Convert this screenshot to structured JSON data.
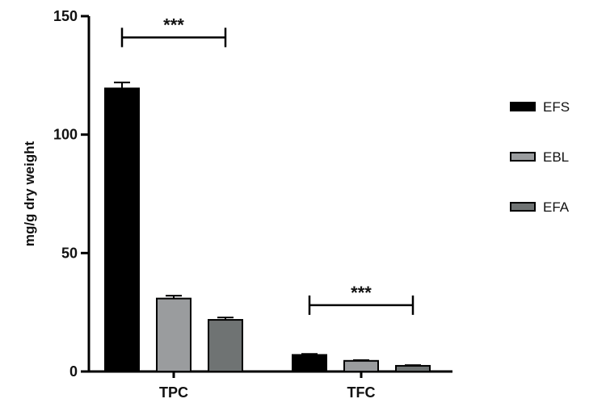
{
  "chart_data": {
    "type": "bar",
    "categories": [
      "TPC",
      "TFC"
    ],
    "ylabel": "mg/g dry weight",
    "ylim": [
      0,
      150
    ],
    "yticks": [
      0,
      50,
      100,
      150
    ],
    "grid": false,
    "legend_position": "right",
    "series": [
      {
        "name": "EFS",
        "values": [
          119.5,
          7.0
        ],
        "errors": [
          2.5,
          0.4
        ],
        "color": "#000000"
      },
      {
        "name": "EBL",
        "values": [
          30.8,
          4.5
        ],
        "errors": [
          1.2,
          0.3
        ],
        "color": "#9a9c9e"
      },
      {
        "name": "EFA",
        "values": [
          21.8,
          2.4
        ],
        "errors": [
          1.0,
          0.3
        ],
        "color": "#6f7373"
      }
    ],
    "annotations": [
      {
        "text": "***",
        "category": "TPC",
        "from_series": "EFS",
        "to_series": "EFA",
        "y": 141
      },
      {
        "text": "***",
        "category": "TFC",
        "from_series": "EFS",
        "to_series": "EFA",
        "y": 28
      }
    ]
  }
}
